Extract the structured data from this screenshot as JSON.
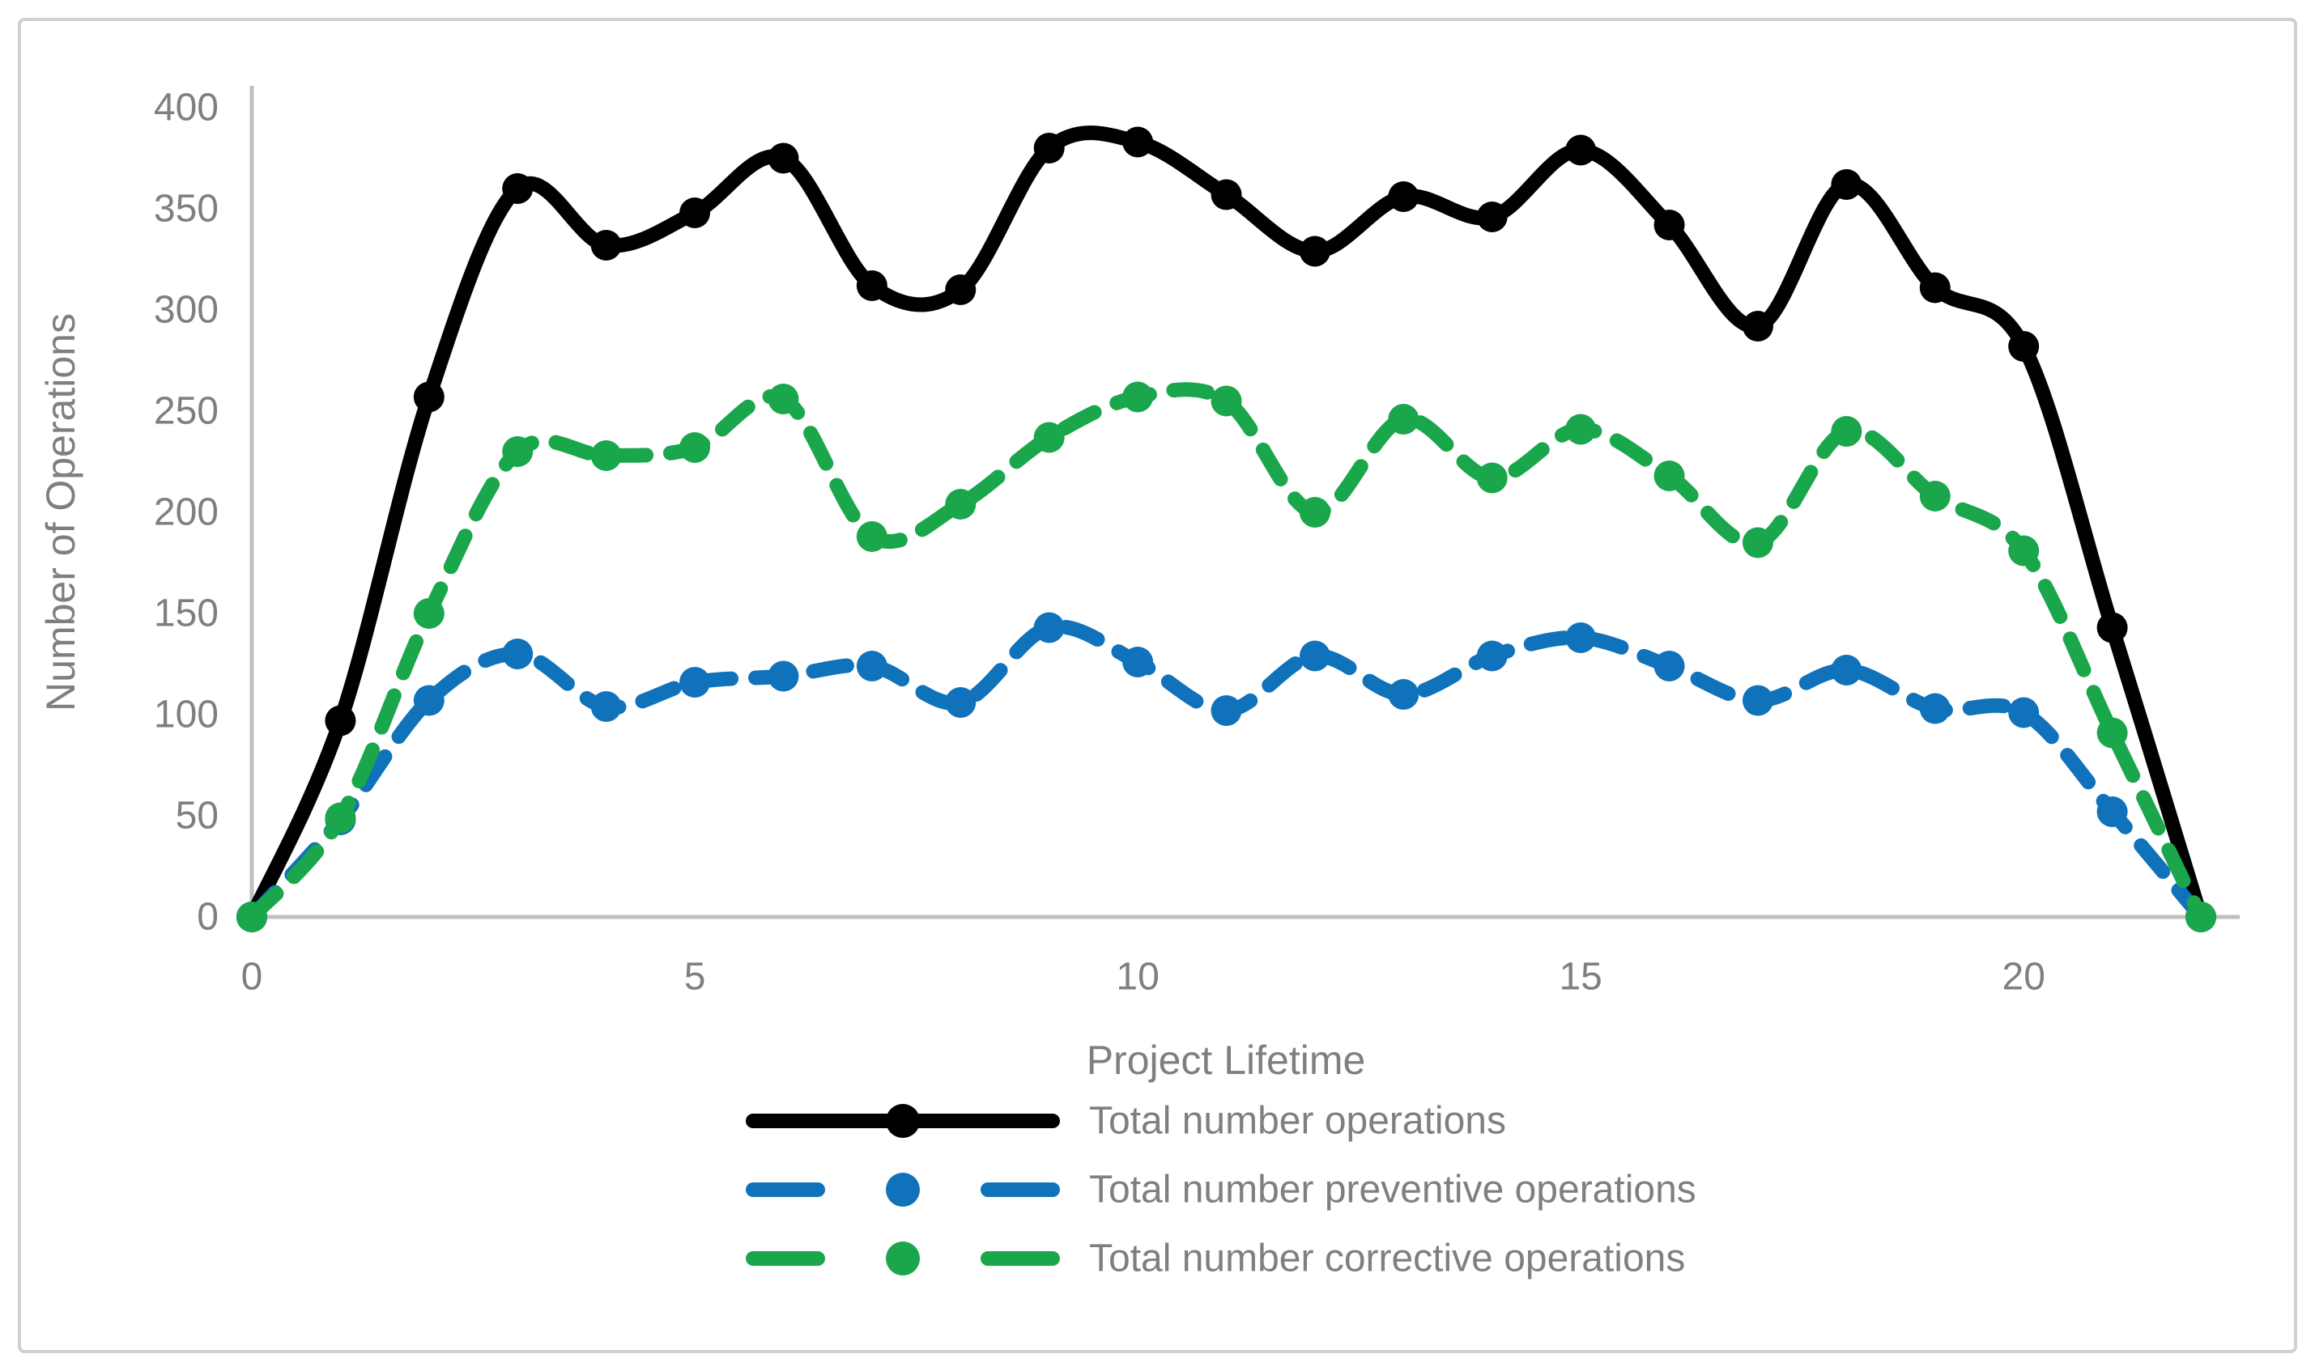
{
  "figure": {
    "background": "#FFFFFF",
    "border_color": "#D0D0D0",
    "axis_color": "#BFBFBF",
    "label_color": "#7F7F7F"
  },
  "chart_data": {
    "type": "line",
    "title": "",
    "xlabel": "Project Lifetime",
    "ylabel": "Number of Operations",
    "x": [
      0,
      1,
      2,
      3,
      4,
      5,
      6,
      7,
      8,
      9,
      10,
      11,
      12,
      13,
      14,
      15,
      16,
      17,
      18,
      19,
      20,
      21,
      22
    ],
    "series": [
      {
        "name": "Total number operations",
        "color": "#000000",
        "dash": "solid",
        "marker": "circle",
        "values": [
          0,
          97,
          257,
          360,
          332,
          348,
          375,
          312,
          310,
          380,
          383,
          357,
          329,
          356,
          346,
          379,
          342,
          292,
          362,
          311,
          282,
          143,
          0
        ]
      },
      {
        "name": "Total number preventive operations",
        "color": "#1072BA",
        "dash": "dashed",
        "marker": "circle",
        "values": [
          0,
          48,
          107,
          130,
          104,
          116,
          119,
          124,
          106,
          143,
          126,
          102,
          129,
          110,
          129,
          138,
          124,
          107,
          122,
          103,
          101,
          52,
          0
        ]
      },
      {
        "name": "Total number corrective operations",
        "color": "#1AA64B",
        "dash": "dashed",
        "marker": "circle",
        "values": [
          0,
          49,
          150,
          230,
          228,
          232,
          256,
          188,
          204,
          237,
          257,
          255,
          200,
          246,
          217,
          241,
          218,
          185,
          240,
          208,
          181,
          91,
          0
        ]
      }
    ],
    "xlim": [
      0,
      22
    ],
    "ylim": [
      0,
      400
    ],
    "x_ticks": [
      0,
      5,
      10,
      15,
      20
    ],
    "y_ticks": [
      0,
      50,
      100,
      150,
      200,
      250,
      300,
      350,
      400
    ],
    "grid": false,
    "legend_position": "bottom-center",
    "line_smoothing": true
  }
}
